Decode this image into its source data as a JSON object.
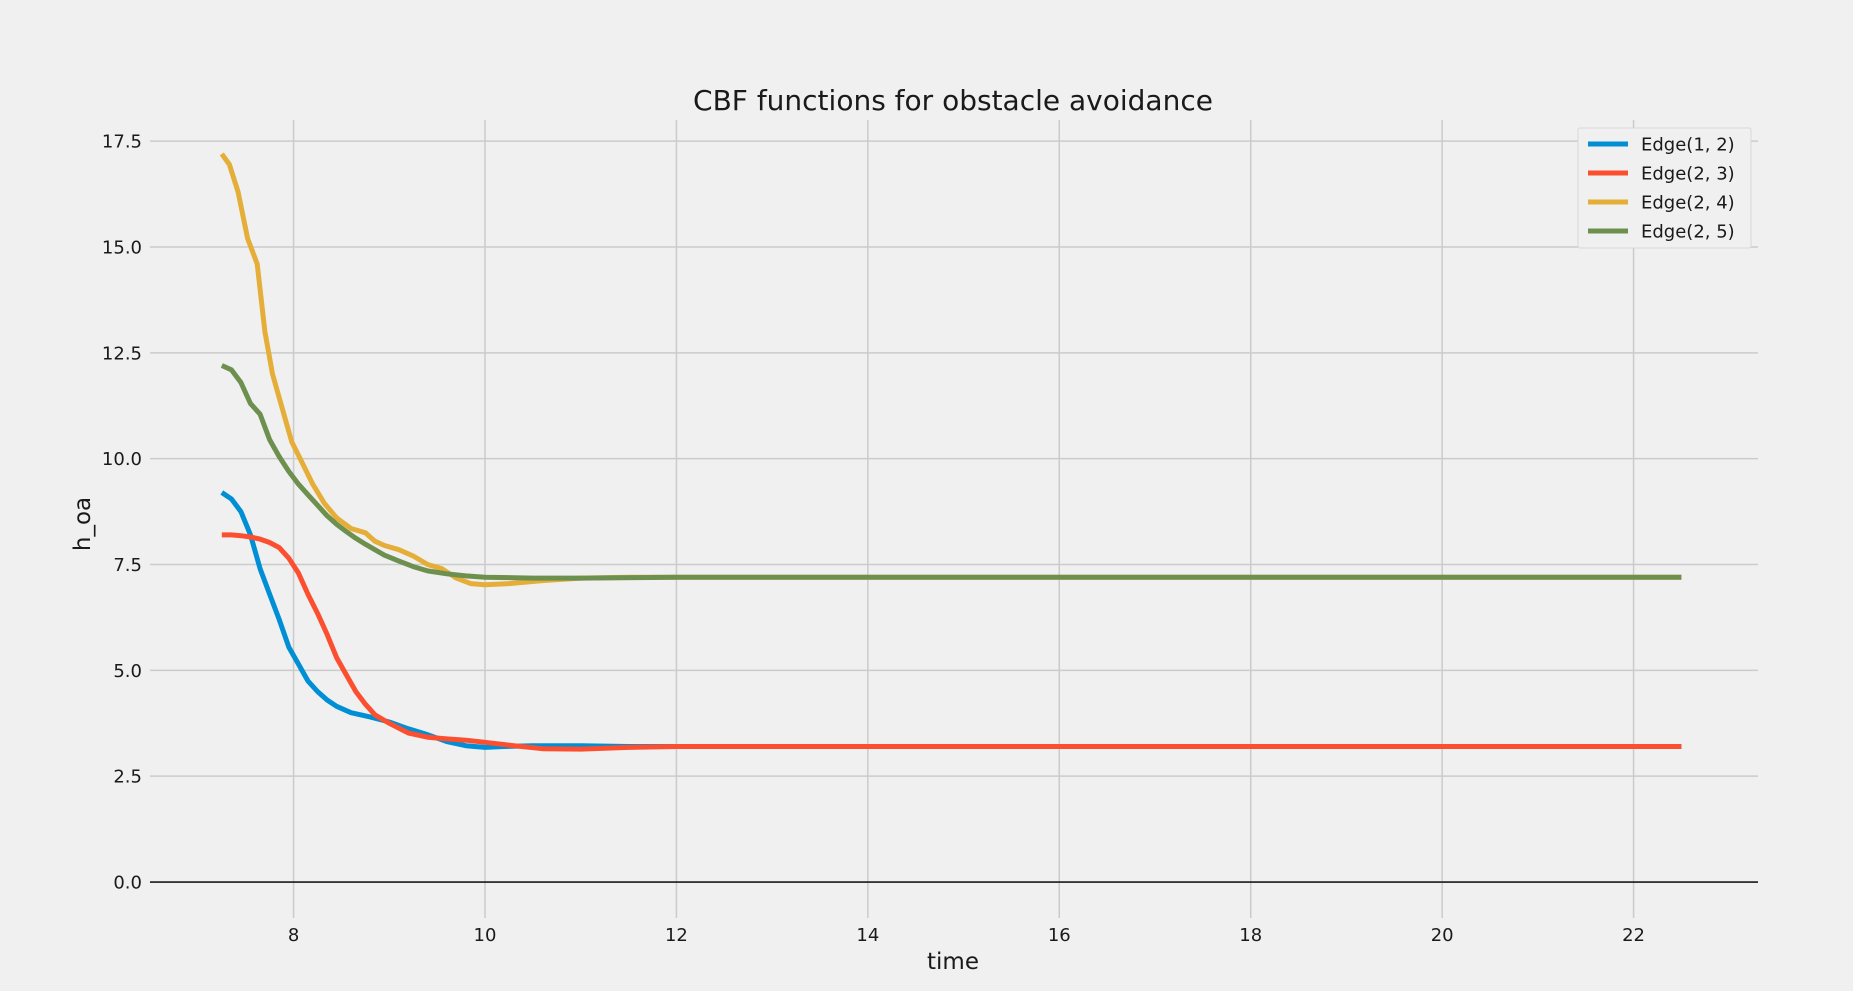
{
  "chart_data": {
    "type": "line",
    "title": "CBF functions for obstacle avoidance",
    "xlabel": "time",
    "ylabel": "h_oa",
    "xlim": [
      6.5,
      23.3
    ],
    "ylim": [
      -0.85,
      18.0
    ],
    "xticks": [
      8,
      10,
      12,
      14,
      16,
      18,
      20,
      22
    ],
    "yticks": [
      0.0,
      2.5,
      5.0,
      7.5,
      10.0,
      12.5,
      15.0,
      17.5
    ],
    "xtick_labels": [
      "8",
      "10",
      "12",
      "14",
      "16",
      "18",
      "20",
      "22"
    ],
    "ytick_labels": [
      "0.0",
      "2.5",
      "5.0",
      "7.5",
      "10.0",
      "12.5",
      "15.0",
      "17.5"
    ],
    "grid": true,
    "legend_position": "top-right",
    "series": [
      {
        "name": "Edge(1, 2)",
        "color": "#008fd5",
        "x": [
          7.25,
          7.35,
          7.45,
          7.55,
          7.65,
          7.75,
          7.85,
          7.95,
          8.05,
          8.15,
          8.25,
          8.35,
          8.45,
          8.6,
          8.8,
          9.0,
          9.2,
          9.4,
          9.6,
          9.8,
          10.0,
          10.2,
          10.5,
          11.0,
          11.5,
          12.0,
          14.0,
          16.0,
          18.0,
          20.0,
          22.5
        ],
        "y": [
          9.2,
          9.05,
          8.75,
          8.2,
          7.4,
          6.8,
          6.2,
          5.55,
          5.15,
          4.75,
          4.5,
          4.3,
          4.15,
          4.0,
          3.9,
          3.78,
          3.62,
          3.48,
          3.32,
          3.22,
          3.18,
          3.2,
          3.22,
          3.22,
          3.2,
          3.2,
          3.2,
          3.2,
          3.2,
          3.2,
          3.2
        ]
      },
      {
        "name": "Edge(2, 3)",
        "color": "#fc4f30",
        "x": [
          7.25,
          7.35,
          7.45,
          7.55,
          7.65,
          7.75,
          7.85,
          7.95,
          8.05,
          8.15,
          8.25,
          8.35,
          8.45,
          8.55,
          8.65,
          8.75,
          8.85,
          9.0,
          9.2,
          9.4,
          9.6,
          9.8,
          10.0,
          10.3,
          10.6,
          11.0,
          11.5,
          12.0,
          14.0,
          16.0,
          18.0,
          20.0,
          22.5
        ],
        "y": [
          8.2,
          8.2,
          8.18,
          8.15,
          8.1,
          8.02,
          7.9,
          7.65,
          7.3,
          6.8,
          6.35,
          5.85,
          5.3,
          4.9,
          4.5,
          4.2,
          3.95,
          3.75,
          3.52,
          3.42,
          3.38,
          3.35,
          3.3,
          3.22,
          3.15,
          3.14,
          3.18,
          3.2,
          3.2,
          3.2,
          3.2,
          3.2,
          3.2
        ]
      },
      {
        "name": "Edge(2, 4)",
        "color": "#e5ae38",
        "x": [
          7.25,
          7.33,
          7.42,
          7.52,
          7.62,
          7.7,
          7.78,
          7.88,
          7.98,
          8.08,
          8.2,
          8.32,
          8.45,
          8.6,
          8.75,
          8.85,
          8.95,
          9.1,
          9.25,
          9.4,
          9.55,
          9.7,
          9.85,
          10.0,
          10.25,
          10.6,
          11.0,
          11.5,
          12.0,
          14.0,
          16.0,
          18.0,
          20.0,
          22.5
        ],
        "y": [
          17.2,
          16.95,
          16.3,
          15.2,
          14.6,
          13.0,
          12.0,
          11.2,
          10.4,
          9.95,
          9.4,
          8.95,
          8.6,
          8.35,
          8.25,
          8.05,
          7.95,
          7.85,
          7.7,
          7.5,
          7.4,
          7.18,
          7.05,
          7.02,
          7.05,
          7.12,
          7.18,
          7.2,
          7.2,
          7.2,
          7.2,
          7.2,
          7.2,
          7.2
        ]
      },
      {
        "name": "Edge(2, 5)",
        "color": "#6d904f",
        "x": [
          7.25,
          7.35,
          7.45,
          7.55,
          7.65,
          7.75,
          7.85,
          7.95,
          8.05,
          8.15,
          8.25,
          8.35,
          8.45,
          8.55,
          8.65,
          8.75,
          8.85,
          8.95,
          9.1,
          9.25,
          9.4,
          9.6,
          9.8,
          10.0,
          10.5,
          11.0,
          12.0,
          14.0,
          16.0,
          18.0,
          20.0,
          22.5
        ],
        "y": [
          12.2,
          12.1,
          11.8,
          11.3,
          11.05,
          10.45,
          10.05,
          9.7,
          9.4,
          9.15,
          8.9,
          8.65,
          8.45,
          8.28,
          8.12,
          7.98,
          7.85,
          7.72,
          7.58,
          7.45,
          7.35,
          7.28,
          7.23,
          7.2,
          7.18,
          7.18,
          7.2,
          7.2,
          7.2,
          7.2,
          7.2,
          7.2
        ]
      }
    ]
  }
}
